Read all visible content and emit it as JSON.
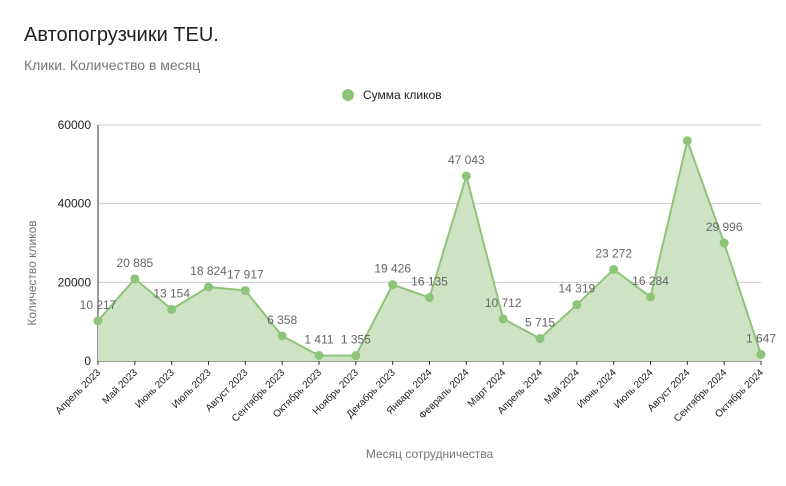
{
  "title": "Автопогрузчики TEU.",
  "subtitle": "Клики. Количество в месяц",
  "colors": {
    "line": "#8dc47a",
    "fill": "#cde3c4",
    "grid": "#cccccc",
    "axis": "#333333",
    "text": "#212121",
    "muted": "#757575",
    "label": "#666666"
  },
  "chart_data": {
    "type": "area",
    "title": "Автопогрузчики TEU.",
    "subtitle": "Клики. Количество в месяц",
    "xlabel": "Месяц сотрудничества",
    "ylabel": "Количество кликов",
    "ylim": [
      0,
      60000
    ],
    "yticks": [
      "0",
      "20000",
      "40000",
      "60000"
    ],
    "grid": true,
    "legend_position": "top",
    "categories": [
      "Апрель 2023",
      "Май 2023",
      "Июнь 2023",
      "Июль 2023",
      "Август 2023",
      "Сентябрь 2023",
      "Октябрь 2023",
      "Ноябрь 2023",
      "Декабрь 2023",
      "Январь 2024",
      "Февраль 2024",
      "Март 2024",
      "Апрель 2024",
      "Май 2024",
      "Июнь 2024",
      "Июль 2024",
      "Август 2024",
      "Сентябрь 2024",
      "Октябрь 2024"
    ],
    "series": [
      {
        "name": "Сумма кликов",
        "values": [
          10217,
          20885,
          13154,
          18824,
          17917,
          6358,
          1411,
          1355,
          19426,
          16135,
          47043,
          10712,
          5715,
          14319,
          23272,
          16284,
          56000,
          29996,
          1647
        ],
        "labels": [
          "10 217",
          "20 885",
          "13 154",
          "18 824",
          "17 917",
          "6 358",
          "1 411",
          "1 355",
          "19 426",
          "16 135",
          "47 043",
          "10 712",
          "5 715",
          "14 319",
          "23 272",
          "16 284",
          "",
          "29 996",
          "1 647"
        ]
      }
    ]
  }
}
